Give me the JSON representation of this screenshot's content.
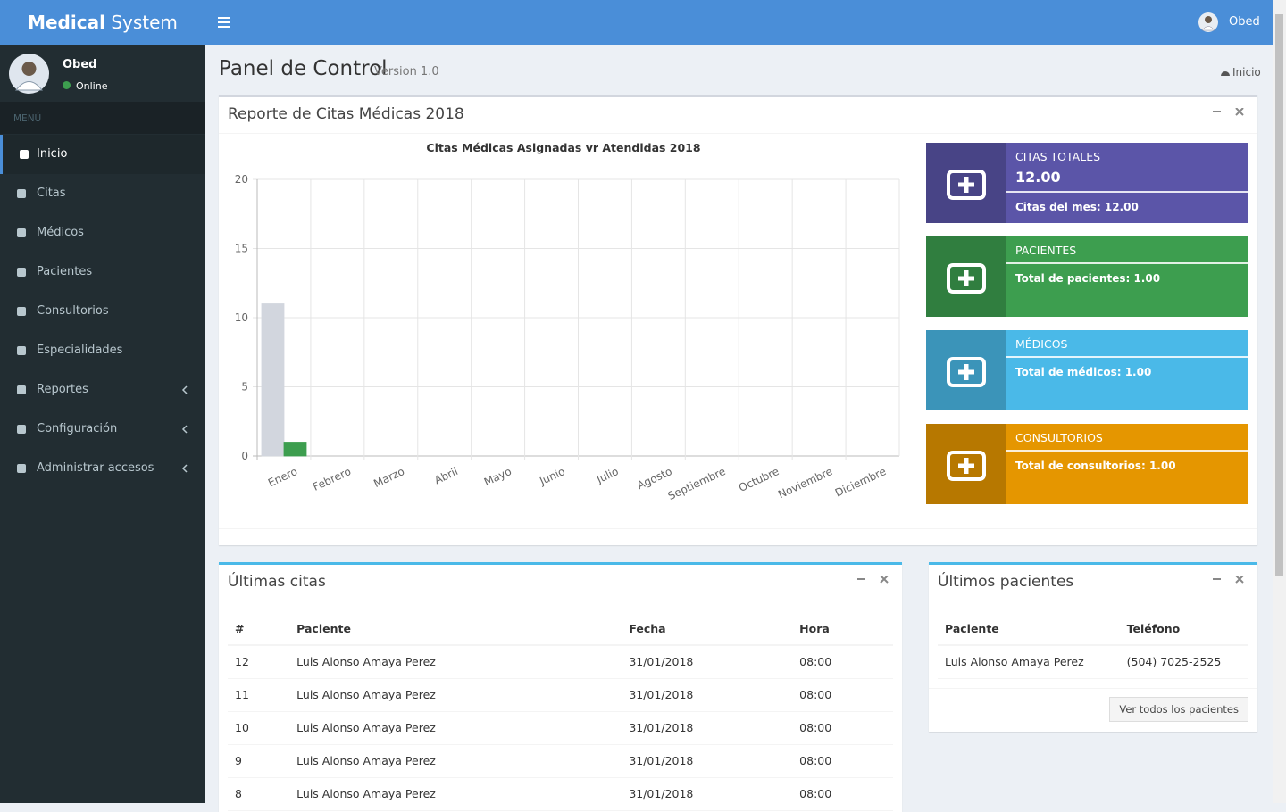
{
  "navbar": {
    "brand_bold": "Medical",
    "brand_rest": "System",
    "user": "Obed"
  },
  "sidebar": {
    "user": {
      "name": "Obed",
      "status": "Online"
    },
    "header": "MENÚ",
    "items": [
      "Inicio",
      "Citas",
      "Médicos",
      "Pacientes",
      "Consultorios",
      "Especialidades",
      "Reportes",
      "Configuración",
      "Administrar accesos"
    ]
  },
  "page": {
    "title": "Panel de Control",
    "subtitle": "Version 1.0",
    "breadcrumb": "Inicio"
  },
  "report_box": {
    "title": "Reporte de Citas Médicas 2018"
  },
  "chart_data": {
    "type": "bar",
    "title": "Citas Médicas Asignadas vr Atendidas 2018",
    "categories": [
      "Enero",
      "Febrero",
      "Marzo",
      "Abril",
      "Mayo",
      "Junio",
      "Julio",
      "Agosto",
      "Septiembre",
      "Octubre",
      "Noviembre",
      "Diciembre"
    ],
    "series": [
      {
        "color": "#d2d6de",
        "values": [
          11,
          0,
          0,
          0,
          0,
          0,
          0,
          0,
          0,
          0,
          0,
          0
        ]
      },
      {
        "color": "#3d9e4f",
        "values": [
          1,
          0,
          0,
          0,
          0,
          0,
          0,
          0,
          0,
          0,
          0,
          0
        ]
      }
    ],
    "ylim": [
      0,
      20
    ],
    "yticks": [
      0,
      5,
      10,
      15,
      20
    ],
    "grid": true
  },
  "info_boxes": [
    {
      "label": "CITAS TOTALES",
      "number": "12.00",
      "description": "Citas del mes: 12.00"
    },
    {
      "label": "PACIENTES",
      "description": "Total de pacientes: 1.00"
    },
    {
      "label": "MÉDICOS",
      "description": "Total de médicos: 1.00"
    },
    {
      "label": "CONSULTORIOS",
      "description": "Total de consultorios: 1.00"
    }
  ],
  "latest_appointments": {
    "title": "Últimas citas",
    "columns": [
      "#",
      "Paciente",
      "Fecha",
      "Hora"
    ],
    "rows": [
      [
        "12",
        "Luis Alonso Amaya Perez",
        "31/01/2018",
        "08:00"
      ],
      [
        "11",
        "Luis Alonso Amaya Perez",
        "31/01/2018",
        "08:00"
      ],
      [
        "10",
        "Luis Alonso Amaya Perez",
        "31/01/2018",
        "08:00"
      ],
      [
        "9",
        "Luis Alonso Amaya Perez",
        "31/01/2018",
        "08:00"
      ],
      [
        "8",
        "Luis Alonso Amaya Perez",
        "31/01/2018",
        "08:00"
      ]
    ]
  },
  "latest_patients": {
    "title": "Últimos pacientes",
    "columns": [
      "Paciente",
      "Teléfono"
    ],
    "rows": [
      [
        "Luis Alonso Amaya Perez",
        "(504) 7025-2525"
      ]
    ],
    "button": "Ver todos los pacientes"
  }
}
